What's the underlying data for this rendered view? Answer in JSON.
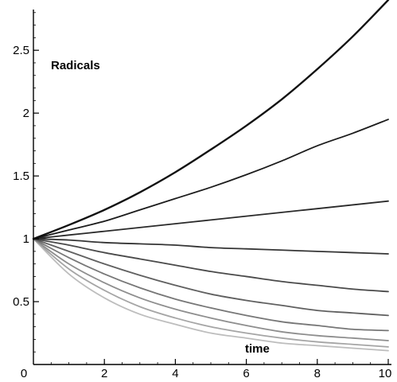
{
  "chart_data": {
    "type": "line",
    "title": "",
    "xlabel": "time",
    "ylabel": "Radicals",
    "xlim": [
      0,
      10
    ],
    "ylim": [
      0,
      2.9
    ],
    "x_ticks": [
      2,
      4,
      6,
      8,
      10
    ],
    "y_ticks": [
      0.5,
      1,
      1.5,
      2,
      2.5
    ],
    "x_tick_labels": [
      "2",
      "4",
      "6",
      "8",
      "10"
    ],
    "y_tick_labels": [
      "0.5",
      "1",
      "1.5",
      "2",
      "2.5"
    ],
    "origin_label": "0",
    "grid": false,
    "legend": "none",
    "x": [
      0,
      1,
      2,
      3,
      4,
      5,
      6,
      7,
      8,
      9,
      10
    ],
    "series": [
      {
        "color": "#111111",
        "values": [
          1,
          1.11,
          1.23,
          1.37,
          1.53,
          1.71,
          1.9,
          2.11,
          2.35,
          2.61,
          2.9
        ]
      },
      {
        "color": "#1c1c1c",
        "values": [
          1,
          1.07,
          1.14,
          1.23,
          1.32,
          1.41,
          1.51,
          1.62,
          1.74,
          1.84,
          1.95
        ]
      },
      {
        "color": "#2a2a2a",
        "values": [
          1,
          1.03,
          1.06,
          1.09,
          1.12,
          1.15,
          1.18,
          1.21,
          1.24,
          1.27,
          1.3
        ]
      },
      {
        "color": "#353535",
        "values": [
          1,
          0.99,
          0.97,
          0.96,
          0.95,
          0.93,
          0.92,
          0.91,
          0.9,
          0.89,
          0.88
        ]
      },
      {
        "color": "#4a4a4a",
        "values": [
          1,
          0.95,
          0.89,
          0.84,
          0.79,
          0.74,
          0.7,
          0.66,
          0.63,
          0.6,
          0.58
        ]
      },
      {
        "color": "#606060",
        "values": [
          1,
          0.9,
          0.8,
          0.71,
          0.63,
          0.56,
          0.51,
          0.47,
          0.43,
          0.41,
          0.39
        ]
      },
      {
        "color": "#777777",
        "values": [
          1,
          0.85,
          0.72,
          0.61,
          0.52,
          0.45,
          0.39,
          0.34,
          0.31,
          0.28,
          0.27
        ]
      },
      {
        "color": "#8e8e8e",
        "values": [
          1,
          0.8,
          0.65,
          0.53,
          0.44,
          0.37,
          0.31,
          0.26,
          0.23,
          0.21,
          0.19
        ]
      },
      {
        "color": "#a5a5a5",
        "values": [
          1,
          0.76,
          0.59,
          0.46,
          0.37,
          0.3,
          0.25,
          0.21,
          0.18,
          0.16,
          0.14
        ]
      },
      {
        "color": "#bdbdbd",
        "values": [
          1,
          0.72,
          0.53,
          0.4,
          0.32,
          0.25,
          0.21,
          0.17,
          0.15,
          0.13,
          0.11
        ]
      }
    ]
  }
}
